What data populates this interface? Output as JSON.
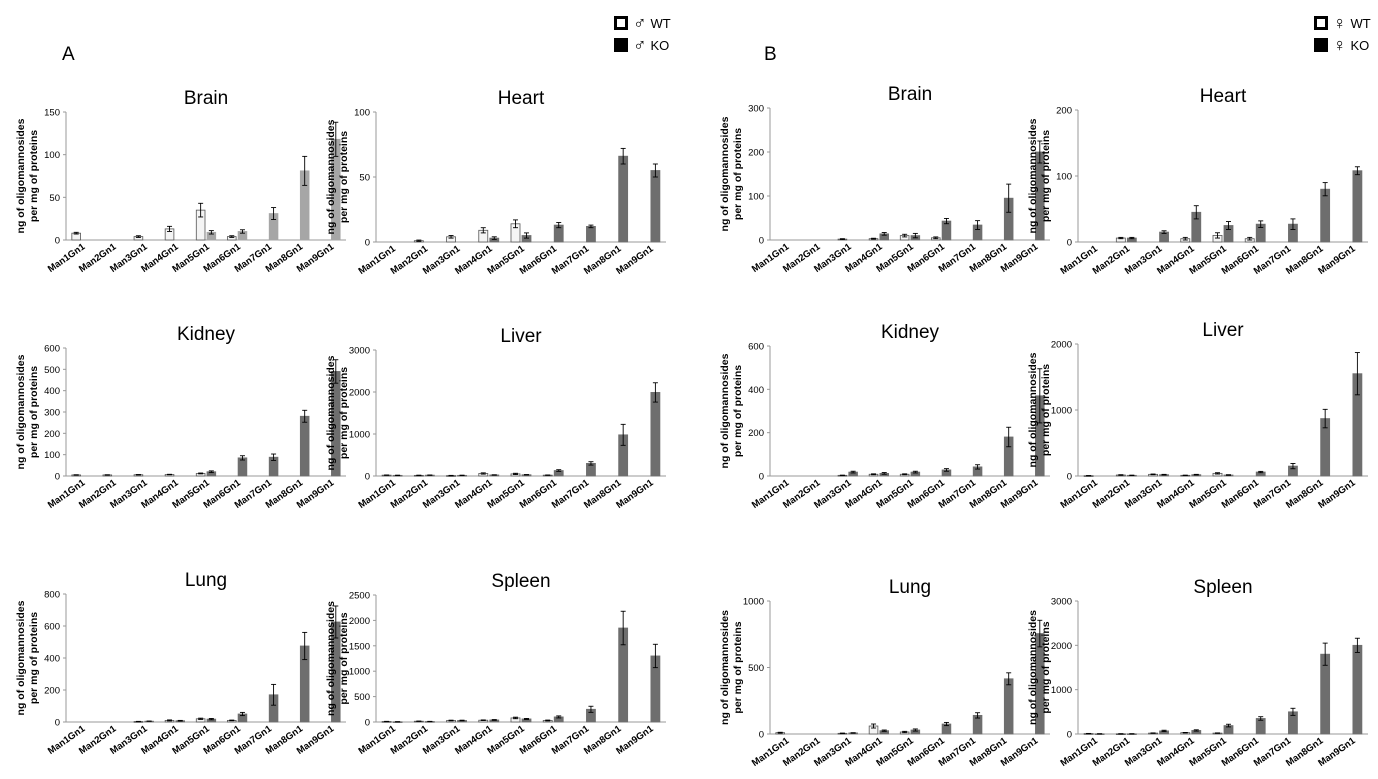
{
  "panels": {
    "A": "A",
    "B": "B"
  },
  "legends": {
    "male": {
      "wt": {
        "symbol": "♂",
        "label": "WT"
      },
      "ko": {
        "symbol": "♂",
        "label": "KO"
      }
    },
    "female": {
      "wt": {
        "symbol": "♀",
        "label": "WT"
      },
      "ko": {
        "symbol": "♀",
        "label": "KO"
      }
    }
  },
  "colors": {
    "wt_fill": "#f4f4f4",
    "wt_stroke": "#555555",
    "ko_fill": "#6e6e6e",
    "ko_light": "#a6a6a6",
    "axis": "#999999"
  },
  "chart_data": [
    {
      "id": "A-brain",
      "type": "bar",
      "title": "Brain",
      "ylabel": "ng of oligomannosides\nper mg of proteins",
      "ylim": [
        0,
        150
      ],
      "yticks": [
        0,
        50,
        100,
        150
      ],
      "categories": [
        "Man1Gn1",
        "Man2Gn1",
        "Man3Gn1",
        "Man4Gn1",
        "Man5Gn1",
        "Man6Gn1",
        "Man7Gn1",
        "Man8Gn1",
        "Man9Gn1"
      ],
      "series": [
        {
          "name": "WT",
          "values": [
            8,
            0,
            4,
            13,
            35,
            4,
            0,
            0,
            0
          ],
          "errors": [
            1,
            0,
            1,
            3,
            8,
            1,
            0,
            0,
            0
          ]
        },
        {
          "name": "KO",
          "values": [
            0,
            0,
            0,
            0,
            9,
            10,
            31,
            81,
            118
          ],
          "errors": [
            0,
            0,
            0,
            0,
            2,
            2,
            7,
            17,
            20
          ]
        }
      ]
    },
    {
      "id": "A-heart",
      "type": "bar",
      "title": "Heart",
      "ylabel": "ng of oligomannosides\nper mg of proteins",
      "ylim": [
        0,
        100
      ],
      "yticks": [
        0,
        50,
        100
      ],
      "categories": [
        "Man1Gn1",
        "Man2Gn1",
        "Man3Gn1",
        "Man4Gn1",
        "Man5Gn1",
        "Man6Gn1",
        "Man7Gn1",
        "Man8Gn1",
        "Man9Gn1"
      ],
      "series": [
        {
          "name": "WT",
          "values": [
            0,
            1,
            4,
            9,
            14,
            0,
            0,
            0,
            0
          ],
          "errors": [
            0,
            0.5,
            1,
            2,
            3,
            0,
            0,
            0,
            0
          ]
        },
        {
          "name": "KO",
          "values": [
            0,
            0,
            0,
            3,
            5,
            13,
            12,
            66,
            55
          ],
          "errors": [
            0,
            0,
            0,
            1,
            2,
            2,
            1,
            6,
            5
          ]
        }
      ]
    },
    {
      "id": "B-brain",
      "type": "bar",
      "title": "Brain",
      "ylabel": "ng of oligomannosides\nper mg of proteins",
      "ylim": [
        0,
        300
      ],
      "yticks": [
        0,
        100,
        200,
        300
      ],
      "categories": [
        "Man1Gn1",
        "Man2Gn1",
        "Man3Gn1",
        "Man4Gn1",
        "Man5Gn1",
        "Man6Gn1",
        "Man7Gn1",
        "Man8Gn1",
        "Man9Gn1"
      ],
      "series": [
        {
          "name": "WT",
          "values": [
            0,
            0,
            2,
            3,
            10,
            5,
            0,
            0,
            0
          ],
          "errors": [
            0,
            0,
            1,
            1,
            3,
            2,
            0,
            0,
            0
          ]
        },
        {
          "name": "KO",
          "values": [
            0,
            0,
            0,
            14,
            10,
            43,
            34,
            95,
            200
          ],
          "errors": [
            0,
            0,
            0,
            3,
            5,
            6,
            10,
            32,
            25
          ]
        }
      ]
    },
    {
      "id": "B-heart",
      "type": "bar",
      "title": "Heart",
      "ylabel": "ng of oligomannosides\nper mg of proteins",
      "ylim": [
        0,
        200
      ],
      "yticks": [
        0,
        100,
        200
      ],
      "categories": [
        "Man1Gn1",
        "Man2Gn1",
        "Man3Gn1",
        "Man4Gn1",
        "Man5Gn1",
        "Man6Gn1",
        "Man7Gn1",
        "Man8Gn1",
        "Man9Gn1"
      ],
      "series": [
        {
          "name": "WT",
          "values": [
            0,
            6,
            0,
            5,
            10,
            5,
            0,
            0,
            0
          ],
          "errors": [
            0,
            1,
            0,
            2,
            4,
            2,
            0,
            0,
            0
          ]
        },
        {
          "name": "KO",
          "values": [
            0,
            6,
            15,
            45,
            25,
            27,
            27,
            80,
            108
          ],
          "errors": [
            0,
            1,
            2,
            10,
            6,
            5,
            8,
            10,
            6
          ]
        }
      ]
    },
    {
      "id": "A-kidney",
      "type": "bar",
      "title": "Kidney",
      "ylabel": "ng of oligomannosides\nper mg of proteins",
      "ylim": [
        0,
        600
      ],
      "yticks": [
        0,
        100,
        200,
        300,
        400,
        500,
        600
      ],
      "categories": [
        "Man1Gn1",
        "Man2Gn1",
        "Man3Gn1",
        "Man4Gn1",
        "Man5Gn1",
        "Man6Gn1",
        "Man7Gn1",
        "Man8Gn1",
        "Man9Gn1"
      ],
      "series": [
        {
          "name": "WT",
          "values": [
            5,
            5,
            6,
            7,
            12,
            0,
            0,
            0,
            0
          ],
          "errors": [
            1,
            1,
            1,
            1,
            2,
            0,
            0,
            0,
            0
          ]
        },
        {
          "name": "KO",
          "values": [
            0,
            0,
            0,
            0,
            20,
            85,
            88,
            280,
            490
          ],
          "errors": [
            0,
            0,
            0,
            0,
            4,
            10,
            15,
            28,
            55
          ]
        }
      ]
    },
    {
      "id": "A-liver",
      "type": "bar",
      "title": "Liver",
      "ylabel": "ng of oligomannosides\nper mg of proteins",
      "ylim": [
        0,
        3000
      ],
      "yticks": [
        0,
        1000,
        2000,
        3000
      ],
      "categories": [
        "Man1Gn1",
        "Man2Gn1",
        "Man3Gn1",
        "Man4Gn1",
        "Man5Gn1",
        "Man6Gn1",
        "Man7Gn1",
        "Man8Gn1",
        "Man9Gn1"
      ],
      "series": [
        {
          "name": "WT",
          "values": [
            20,
            15,
            10,
            60,
            50,
            20,
            0,
            0,
            0
          ],
          "errors": [
            5,
            5,
            5,
            15,
            15,
            5,
            0,
            0,
            0
          ]
        },
        {
          "name": "KO",
          "values": [
            15,
            20,
            15,
            25,
            30,
            130,
            300,
            980,
            1990
          ],
          "errors": [
            5,
            5,
            5,
            5,
            5,
            20,
            40,
            250,
            230
          ]
        }
      ]
    },
    {
      "id": "B-kidney",
      "type": "bar",
      "title": "Kidney",
      "ylabel": "ng of oligomannosides\nper mg of proteins",
      "ylim": [
        0,
        600
      ],
      "yticks": [
        0,
        200,
        400,
        600
      ],
      "categories": [
        "Man1Gn1",
        "Man2Gn1",
        "Man3Gn1",
        "Man4Gn1",
        "Man5Gn1",
        "Man6Gn1",
        "Man7Gn1",
        "Man8Gn1",
        "Man9Gn1"
      ],
      "series": [
        {
          "name": "WT",
          "values": [
            0,
            0,
            3,
            8,
            8,
            0,
            0,
            0,
            0
          ],
          "errors": [
            0,
            0,
            1,
            2,
            2,
            0,
            0,
            0,
            0
          ]
        },
        {
          "name": "KO",
          "values": [
            0,
            0,
            18,
            12,
            18,
            28,
            42,
            180,
            370
          ],
          "errors": [
            0,
            0,
            4,
            4,
            4,
            6,
            10,
            45,
            125
          ]
        }
      ]
    },
    {
      "id": "B-liver",
      "type": "bar",
      "title": "Liver",
      "ylabel": "ng of oligomannosides\nper mg of proteins",
      "ylim": [
        0,
        2000
      ],
      "yticks": [
        0,
        1000,
        2000
      ],
      "categories": [
        "Man1Gn1",
        "Man2Gn1",
        "Man3Gn1",
        "Man4Gn1",
        "Man5Gn1",
        "Man6Gn1",
        "Man7Gn1",
        "Man8Gn1",
        "Man9Gn1"
      ],
      "series": [
        {
          "name": "WT",
          "values": [
            5,
            15,
            25,
            10,
            40,
            0,
            0,
            0,
            0
          ],
          "errors": [
            2,
            5,
            5,
            3,
            10,
            0,
            0,
            0,
            0
          ]
        },
        {
          "name": "KO",
          "values": [
            0,
            10,
            20,
            20,
            15,
            60,
            150,
            870,
            1550
          ],
          "errors": [
            0,
            3,
            5,
            5,
            5,
            10,
            40,
            140,
            320
          ]
        }
      ]
    },
    {
      "id": "A-lung",
      "type": "bar",
      "title": "Lung",
      "ylabel": "ng of oligomannosides\nper mg of proteins",
      "ylim": [
        0,
        800
      ],
      "yticks": [
        0,
        200,
        400,
        600,
        800
      ],
      "categories": [
        "Man1Gn1",
        "Man2Gn1",
        "Man3Gn1",
        "Man4Gn1",
        "Man5Gn1",
        "Man6Gn1",
        "Man7Gn1",
        "Man8Gn1",
        "Man9Gn1"
      ],
      "series": [
        {
          "name": "WT",
          "values": [
            0,
            0,
            3,
            10,
            20,
            10,
            0,
            0,
            0
          ],
          "errors": [
            0,
            0,
            1,
            3,
            4,
            2,
            0,
            0,
            0
          ]
        },
        {
          "name": "KO",
          "values": [
            0,
            0,
            5,
            8,
            18,
            50,
            170,
            475,
            625
          ],
          "errors": [
            0,
            0,
            1,
            2,
            4,
            10,
            65,
            85,
            100
          ]
        }
      ]
    },
    {
      "id": "A-spleen",
      "type": "bar",
      "title": "Spleen",
      "ylabel": "ng of oligomannosides\nper mg of proteins",
      "ylim": [
        0,
        2500
      ],
      "yticks": [
        0,
        500,
        1000,
        1500,
        2000,
        2500
      ],
      "categories": [
        "Man1Gn1",
        "Man2Gn1",
        "Man3Gn1",
        "Man4Gn1",
        "Man5Gn1",
        "Man6Gn1",
        "Man7Gn1",
        "Man8Gn1",
        "Man9Gn1"
      ],
      "series": [
        {
          "name": "WT",
          "values": [
            10,
            15,
            30,
            35,
            80,
            30,
            0,
            0,
            0
          ],
          "errors": [
            3,
            4,
            6,
            6,
            15,
            8,
            0,
            0,
            0
          ]
        },
        {
          "name": "KO",
          "values": [
            5,
            10,
            30,
            40,
            60,
            100,
            250,
            1850,
            1300
          ],
          "errors": [
            2,
            3,
            6,
            8,
            10,
            20,
            60,
            330,
            230
          ]
        }
      ]
    },
    {
      "id": "B-lung",
      "type": "bar",
      "title": "Lung",
      "ylabel": "ng of oligomannosides\nper mg of proteins",
      "ylim": [
        0,
        1000
      ],
      "yticks": [
        0,
        500,
        1000
      ],
      "categories": [
        "Man1Gn1",
        "Man2Gn1",
        "Man3Gn1",
        "Man4Gn1",
        "Man5Gn1",
        "Man6Gn1",
        "Man7Gn1",
        "Man8Gn1",
        "Man9Gn1"
      ],
      "series": [
        {
          "name": "WT",
          "values": [
            10,
            0,
            5,
            60,
            15,
            0,
            0,
            0,
            0
          ],
          "errors": [
            3,
            0,
            2,
            15,
            5,
            0,
            0,
            0,
            0
          ]
        },
        {
          "name": "KO",
          "values": [
            0,
            0,
            8,
            25,
            30,
            75,
            140,
            415,
            755
          ],
          "errors": [
            0,
            0,
            2,
            5,
            8,
            12,
            20,
            45,
            100
          ]
        }
      ]
    },
    {
      "id": "B-spleen",
      "type": "bar",
      "title": "Spleen",
      "ylabel": "ng of oligomannosides\nper mg of proteins",
      "ylim": [
        0,
        3000
      ],
      "yticks": [
        0,
        1000,
        2000,
        3000
      ],
      "categories": [
        "Man1Gn1",
        "Man2Gn1",
        "Man3Gn1",
        "Man4Gn1",
        "Man5Gn1",
        "Man6Gn1",
        "Man7Gn1",
        "Man8Gn1",
        "Man9Gn1"
      ],
      "series": [
        {
          "name": "WT",
          "values": [
            10,
            5,
            20,
            30,
            20,
            0,
            0,
            0,
            0
          ],
          "errors": [
            3,
            2,
            5,
            5,
            5,
            0,
            0,
            0,
            0
          ]
        },
        {
          "name": "KO",
          "values": [
            5,
            5,
            70,
            80,
            190,
            350,
            500,
            1800,
            2000
          ],
          "errors": [
            2,
            2,
            15,
            15,
            30,
            40,
            80,
            250,
            160
          ]
        }
      ]
    }
  ]
}
